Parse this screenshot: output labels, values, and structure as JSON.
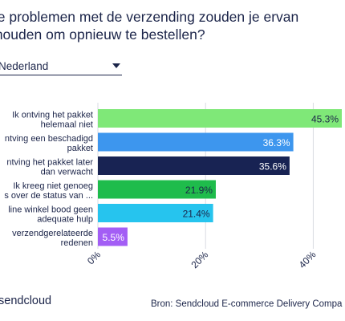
{
  "header": {
    "title_line1": "ke problemen met de verzending zouden je ervan",
    "title_line2": "rhouden om opnieuw te bestellen?"
  },
  "filter": {
    "selected": "Nederland",
    "icon": "chevron-down-icon"
  },
  "footer": {
    "brand": "sendcloud",
    "source": "Bron: Sendcloud E-commerce Delivery Compa"
  },
  "chart_data": {
    "type": "bar",
    "orientation": "horizontal",
    "categories": [
      [
        "Ik ontving het pakket",
        "helemaal niet"
      ],
      [
        "ntving een beschadigd",
        "pakket"
      ],
      [
        "ntving het pakket later",
        "dan verwacht"
      ],
      [
        "Ik kreeg niet genoeg",
        "s over de status van ..."
      ],
      [
        "line winkel bood geen",
        "adequate hulp"
      ],
      [
        "verzendgerelateerde",
        "redenen"
      ]
    ],
    "values": [
      45.3,
      36.3,
      35.6,
      21.9,
      21.4,
      5.5
    ],
    "value_labels": [
      "45.3%",
      "36.3%",
      "35.6%",
      "21.9%",
      "21.4%",
      "5.5%"
    ],
    "colors": [
      "#7fe878",
      "#3d96ee",
      "#182353",
      "#1fbc4c",
      "#26c4ee",
      "#a35ef5"
    ],
    "label_colors": [
      "#1b2449",
      "#ffffff",
      "#ffffff",
      "#1b2449",
      "#1b2449",
      "#ffffff"
    ],
    "x_ticks": [
      0,
      20,
      40
    ],
    "x_tick_labels": [
      "0%",
      "20%",
      "40%"
    ],
    "xlim": [
      0,
      45.3
    ],
    "grid": true
  }
}
